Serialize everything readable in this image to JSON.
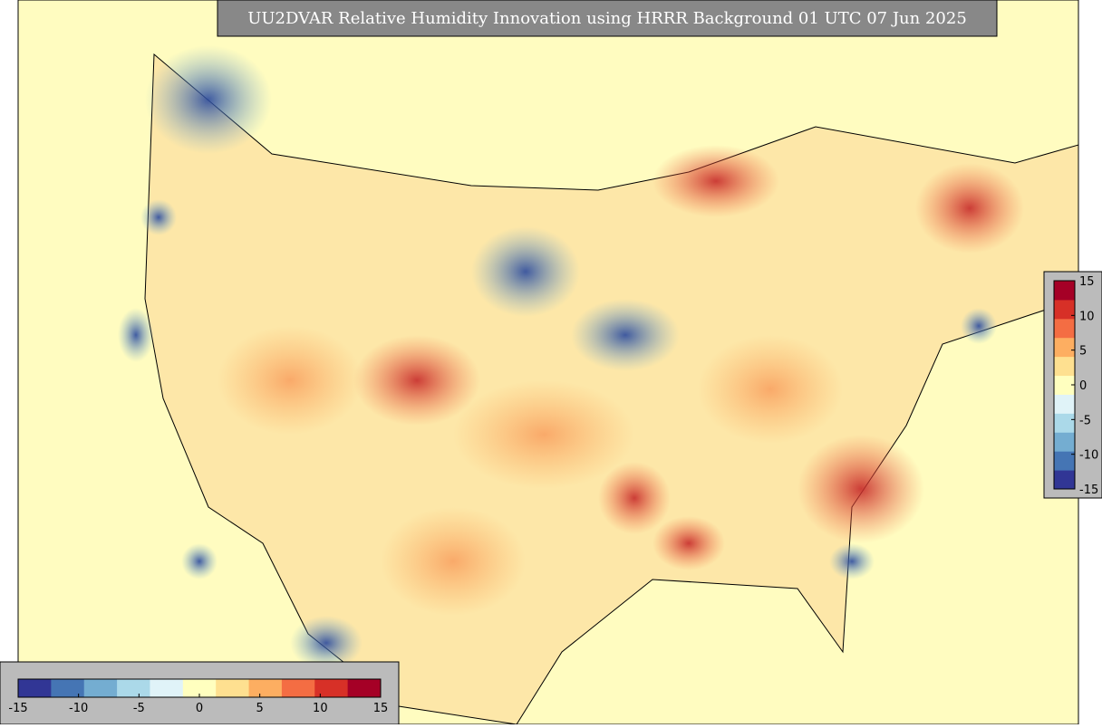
{
  "title": "UU2DVAR Relative Humidity Innovation using HRRR Background 01 UTC 07 Jun 2025",
  "colorbar": {
    "range": [
      -15,
      15
    ],
    "ticks": [
      -15,
      -10,
      -5,
      0,
      5,
      10,
      15
    ],
    "colors": [
      "#313695",
      "#4575b4",
      "#74add1",
      "#abd9e9",
      "#e0f3f8",
      "#ffffbf",
      "#fee090",
      "#fdae61",
      "#f46d43",
      "#d73027",
      "#a50026"
    ]
  },
  "colorbar_right": {
    "range": [
      -15,
      15
    ],
    "ticks": [
      15,
      10,
      5,
      0,
      -5,
      -10,
      -15
    ]
  }
}
